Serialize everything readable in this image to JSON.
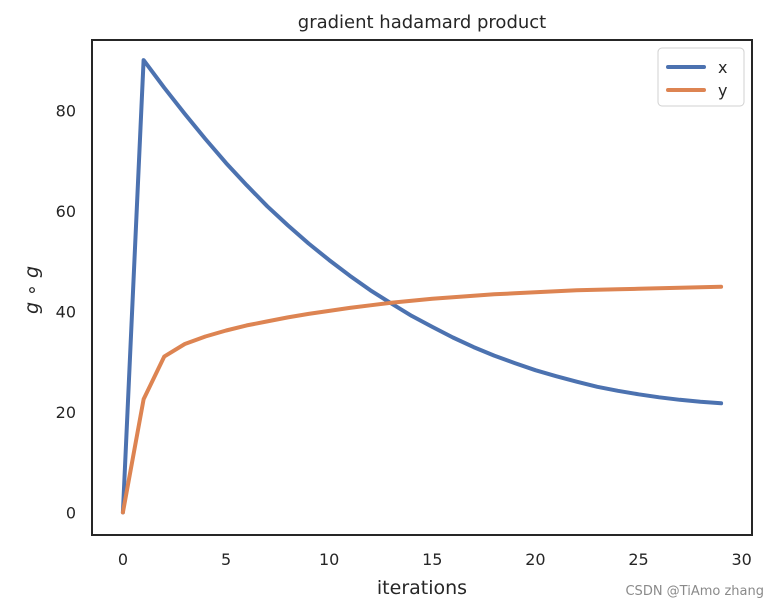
{
  "chart_data": {
    "type": "line",
    "title": "gradient hadamard product",
    "xlabel": "iterations",
    "ylabel": "g ∘ g",
    "xlim": [
      -1.5,
      30.5
    ],
    "ylim": [
      -4.5,
      94
    ],
    "xticks": [
      0,
      5,
      10,
      15,
      20,
      25,
      30
    ],
    "yticks": [
      0,
      20,
      40,
      60,
      80
    ],
    "grid": false,
    "legend": "top-right",
    "series": [
      {
        "name": "x",
        "color": "#4c72b0",
        "x": [
          0,
          1,
          2,
          3,
          4,
          5,
          6,
          7,
          8,
          9,
          10,
          11,
          12,
          13,
          14,
          15,
          16,
          17,
          18,
          19,
          20,
          21,
          22,
          23,
          24,
          25,
          26,
          27,
          28,
          29
        ],
        "values": [
          0,
          90,
          84.5,
          79.3,
          74.3,
          69.5,
          65.1,
          60.9,
          57.1,
          53.5,
          50.2,
          47.1,
          44.2,
          41.6,
          39.1,
          36.9,
          34.8,
          32.9,
          31.2,
          29.7,
          28.3,
          27.1,
          26.0,
          25.0,
          24.2,
          23.5,
          22.9,
          22.4,
          22.0,
          21.7
        ]
      },
      {
        "name": "y",
        "color": "#dd8452",
        "x": [
          0,
          1,
          2,
          3,
          4,
          5,
          6,
          7,
          8,
          9,
          10,
          11,
          12,
          13,
          14,
          15,
          16,
          17,
          18,
          19,
          20,
          21,
          22,
          23,
          24,
          25,
          26,
          27,
          28,
          29
        ],
        "values": [
          0,
          22.5,
          31,
          33.5,
          35,
          36.2,
          37.2,
          38,
          38.8,
          39.5,
          40.1,
          40.7,
          41.2,
          41.7,
          42.1,
          42.5,
          42.8,
          43.1,
          43.4,
          43.6,
          43.8,
          44.0,
          44.2,
          44.3,
          44.4,
          44.5,
          44.6,
          44.7,
          44.8,
          44.9
        ]
      }
    ]
  },
  "watermark": "CSDN @TiAmo zhang"
}
